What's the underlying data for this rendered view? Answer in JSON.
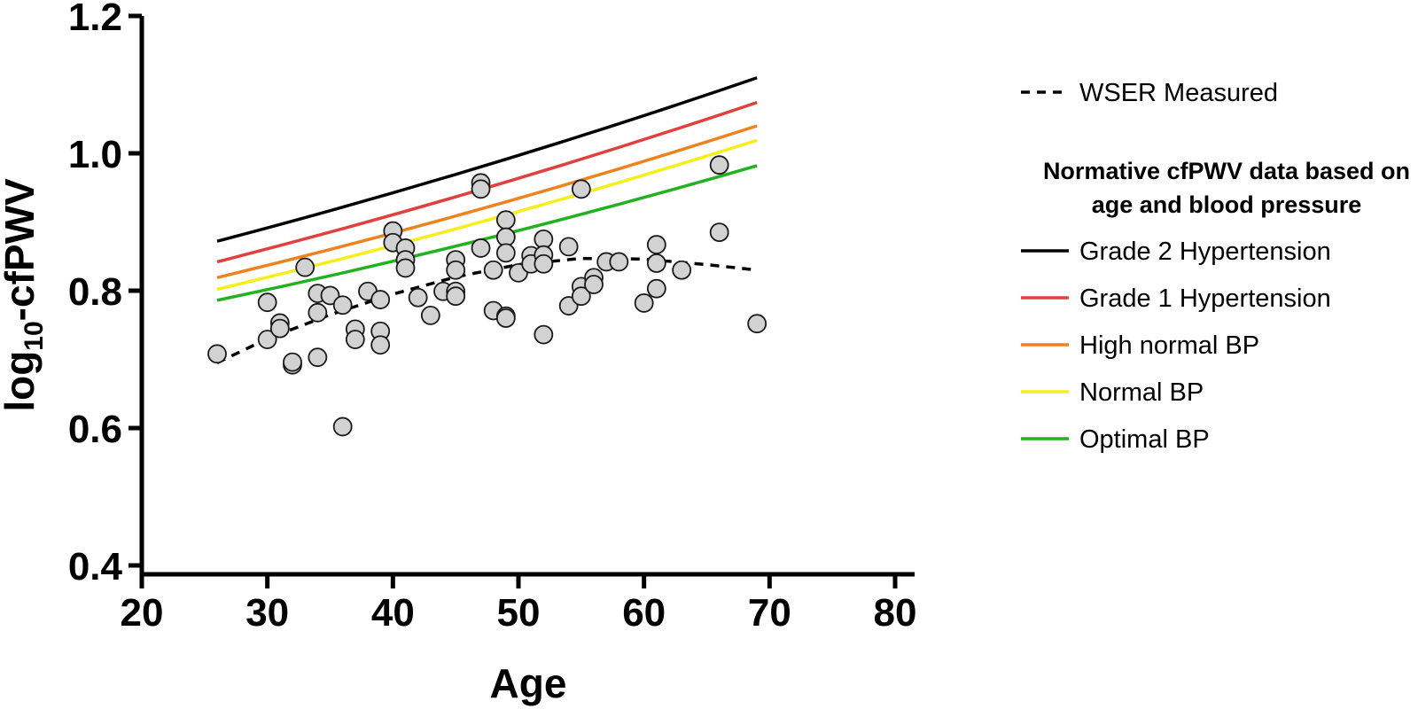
{
  "chart_data": {
    "type": "scatter",
    "title": "",
    "xlabel": "Age",
    "ylabel_main": "log",
    "ylabel_sub": "10",
    "ylabel_rest": "-cfPWV",
    "xlim": [
      20,
      80
    ],
    "ylim": [
      0.4,
      1.2
    ],
    "x_ticks": [
      20,
      30,
      40,
      50,
      60,
      70,
      80
    ],
    "x_tick_labels": [
      "20",
      "30",
      "40",
      "50",
      "60",
      "70",
      "80"
    ],
    "y_ticks": [
      0.4,
      0.6,
      0.8,
      1.0,
      1.2
    ],
    "y_tick_labels": [
      "0.4",
      "0.6",
      "0.8",
      "1.0",
      "1.2"
    ],
    "grid": false,
    "legend_position": "right",
    "legend": {
      "measured_label": "WSER Measured",
      "group_title_line1": "Normative cfPWV data based on",
      "group_title_line2": "age and blood pressure"
    },
    "points": [
      {
        "x": 26,
        "y": 0.708
      },
      {
        "x": 30,
        "y": 0.783
      },
      {
        "x": 30,
        "y": 0.729
      },
      {
        "x": 31,
        "y": 0.753
      },
      {
        "x": 31,
        "y": 0.745
      },
      {
        "x": 32,
        "y": 0.692
      },
      {
        "x": 32,
        "y": 0.696
      },
      {
        "x": 33,
        "y": 0.834
      },
      {
        "x": 34,
        "y": 0.796
      },
      {
        "x": 34,
        "y": 0.768
      },
      {
        "x": 34,
        "y": 0.703
      },
      {
        "x": 35,
        "y": 0.793
      },
      {
        "x": 36,
        "y": 0.779
      },
      {
        "x": 36,
        "y": 0.602
      },
      {
        "x": 37,
        "y": 0.744
      },
      {
        "x": 37,
        "y": 0.729
      },
      {
        "x": 38,
        "y": 0.799
      },
      {
        "x": 39,
        "y": 0.787
      },
      {
        "x": 39,
        "y": 0.741
      },
      {
        "x": 39,
        "y": 0.721
      },
      {
        "x": 40,
        "y": 0.887
      },
      {
        "x": 40,
        "y": 0.87
      },
      {
        "x": 41,
        "y": 0.862
      },
      {
        "x": 41,
        "y": 0.845
      },
      {
        "x": 41,
        "y": 0.833
      },
      {
        "x": 42,
        "y": 0.79
      },
      {
        "x": 43,
        "y": 0.764
      },
      {
        "x": 44,
        "y": 0.799
      },
      {
        "x": 45,
        "y": 0.845
      },
      {
        "x": 45,
        "y": 0.83
      },
      {
        "x": 45,
        "y": 0.799
      },
      {
        "x": 45,
        "y": 0.792
      },
      {
        "x": 47,
        "y": 0.957
      },
      {
        "x": 47,
        "y": 0.948
      },
      {
        "x": 47,
        "y": 0.862
      },
      {
        "x": 48,
        "y": 0.83
      },
      {
        "x": 48,
        "y": 0.771
      },
      {
        "x": 49,
        "y": 0.903
      },
      {
        "x": 49,
        "y": 0.878
      },
      {
        "x": 49,
        "y": 0.855
      },
      {
        "x": 49,
        "y": 0.763
      },
      {
        "x": 49,
        "y": 0.76
      },
      {
        "x": 50,
        "y": 0.826
      },
      {
        "x": 51,
        "y": 0.851
      },
      {
        "x": 51,
        "y": 0.839
      },
      {
        "x": 52,
        "y": 0.875
      },
      {
        "x": 52,
        "y": 0.852
      },
      {
        "x": 52,
        "y": 0.839
      },
      {
        "x": 52,
        "y": 0.736
      },
      {
        "x": 54,
        "y": 0.864
      },
      {
        "x": 54,
        "y": 0.778
      },
      {
        "x": 55,
        "y": 0.948
      },
      {
        "x": 55,
        "y": 0.806
      },
      {
        "x": 55,
        "y": 0.792
      },
      {
        "x": 56,
        "y": 0.819
      },
      {
        "x": 56,
        "y": 0.809
      },
      {
        "x": 57,
        "y": 0.842
      },
      {
        "x": 58,
        "y": 0.842
      },
      {
        "x": 60,
        "y": 0.782
      },
      {
        "x": 61,
        "y": 0.867
      },
      {
        "x": 61,
        "y": 0.84
      },
      {
        "x": 61,
        "y": 0.803
      },
      {
        "x": 63,
        "y": 0.83
      },
      {
        "x": 66,
        "y": 0.983
      },
      {
        "x": 66,
        "y": 0.885
      },
      {
        "x": 69,
        "y": 0.752
      }
    ],
    "series": [
      {
        "name": "Grade 2 Hypertension",
        "color": "#000000",
        "x": [
          26,
          69
        ],
        "y": [
          0.872,
          1.11
        ]
      },
      {
        "name": "Grade 1 Hypertension",
        "color": "#e0413f",
        "x": [
          26,
          69
        ],
        "y": [
          0.842,
          1.074
        ]
      },
      {
        "name": "High normal BP",
        "color": "#f0821e",
        "x": [
          26,
          69
        ],
        "y": [
          0.819,
          1.04
        ]
      },
      {
        "name": "Normal BP",
        "color": "#f4ee1b",
        "x": [
          26,
          69
        ],
        "y": [
          0.802,
          1.019
        ]
      },
      {
        "name": "Optimal BP",
        "color": "#22b11f",
        "x": [
          26,
          69
        ],
        "y": [
          0.786,
          0.982
        ]
      }
    ],
    "measured_curve": {
      "color": "#000000",
      "x": [
        26,
        30,
        35,
        40,
        45,
        50,
        55,
        60,
        65,
        69
      ],
      "y": [
        0.695,
        0.73,
        0.765,
        0.795,
        0.82,
        0.838,
        0.847,
        0.846,
        0.838,
        0.83
      ]
    }
  }
}
